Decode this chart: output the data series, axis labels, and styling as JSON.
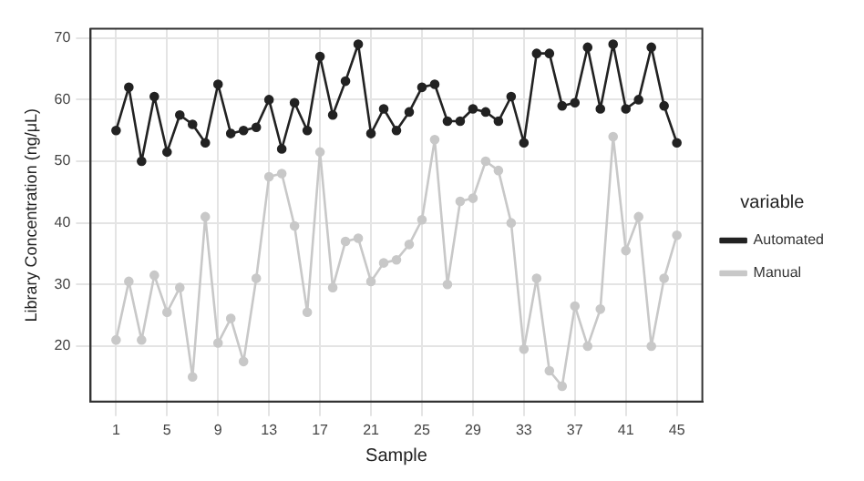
{
  "chart_data": {
    "type": "line",
    "xlabel": "Sample",
    "ylabel": "Library Concentration (ng/μL)",
    "legend_title": "variable",
    "legend": "right",
    "grid": true,
    "marker": "circle",
    "line_style": "solid",
    "x": [
      1,
      2,
      3,
      4,
      5,
      6,
      7,
      8,
      9,
      10,
      11,
      12,
      13,
      14,
      15,
      16,
      17,
      18,
      19,
      20,
      21,
      22,
      23,
      24,
      25,
      26,
      27,
      28,
      29,
      30,
      31,
      32,
      33,
      34,
      35,
      36,
      37,
      38,
      39,
      40,
      41,
      42,
      43,
      44,
      45
    ],
    "xlim": [
      -1,
      47
    ],
    "xticks": [
      1,
      5,
      9,
      13,
      17,
      21,
      25,
      29,
      33,
      37,
      41,
      45
    ],
    "ylim": [
      11,
      71.5
    ],
    "yticks": [
      20,
      30,
      40,
      50,
      60,
      70
    ],
    "series": [
      {
        "name": "Automated",
        "color": "#222222",
        "values": [
          55,
          62,
          50,
          60.5,
          51.5,
          57.5,
          56,
          53,
          62.5,
          54.5,
          55,
          55.5,
          60,
          52,
          59.5,
          55,
          67,
          57.5,
          63,
          69,
          54.5,
          58.5,
          55,
          58,
          62,
          62.5,
          56.5,
          56.5,
          58.5,
          58,
          56.5,
          60.5,
          53,
          67.5,
          67.5,
          59,
          59.5,
          68.5,
          58.5,
          69,
          58.5,
          60,
          68.5,
          59,
          53
        ]
      },
      {
        "name": "Manual",
        "color": "#c8c8c8",
        "values": [
          21,
          30.5,
          21,
          31.5,
          25.5,
          29.5,
          15,
          41,
          20.5,
          24.5,
          17.5,
          31,
          47.5,
          48,
          39.5,
          25.5,
          51.5,
          29.5,
          37,
          37.5,
          30.5,
          33.5,
          34,
          36.5,
          40.5,
          53.5,
          30,
          43.5,
          44,
          50,
          48.5,
          40,
          19.5,
          31,
          16,
          13.5,
          26.5,
          20,
          26,
          54,
          35.5,
          41,
          20,
          31,
          38
        ]
      }
    ]
  }
}
